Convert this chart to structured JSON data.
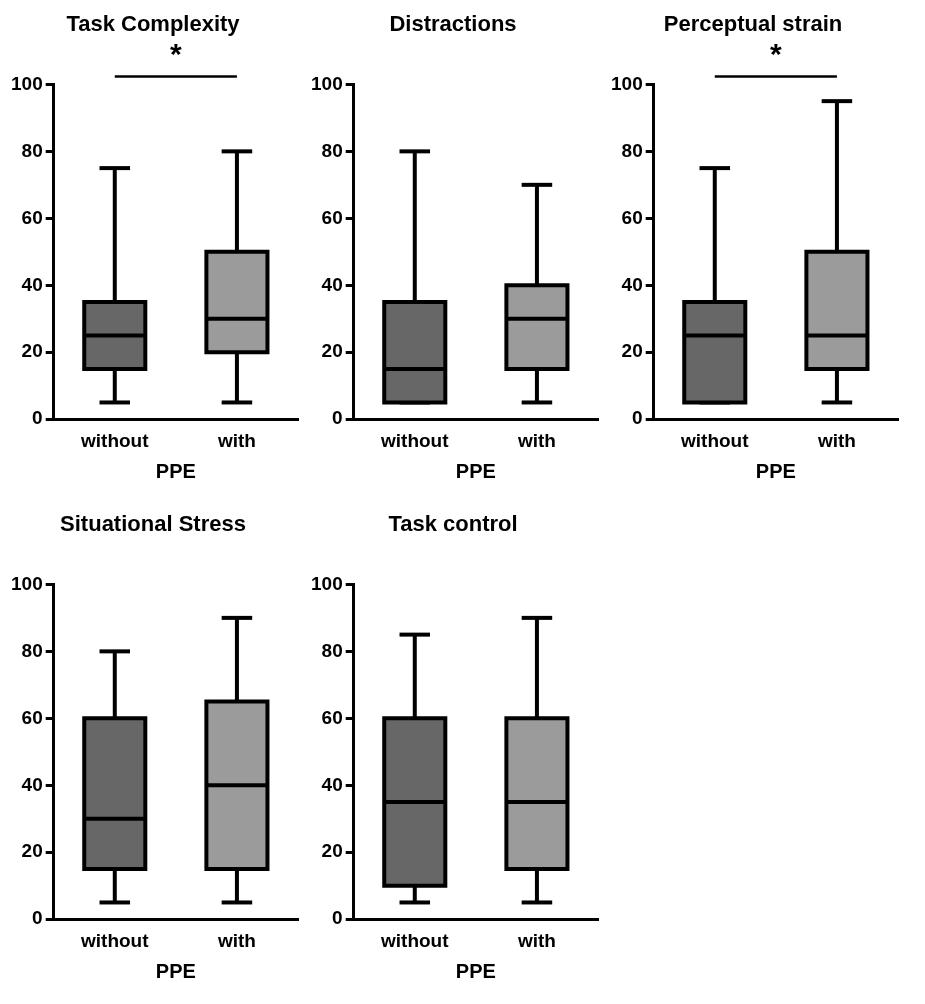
{
  "chart_data": [
    {
      "type": "box",
      "title": "Task Complexity",
      "xlabel": "PPE",
      "categories": [
        "without",
        "with"
      ],
      "colors": [
        "#676767",
        "#9b9b9b"
      ],
      "ylim": [
        0,
        100
      ],
      "yticks": [
        0,
        20,
        40,
        60,
        80,
        100
      ],
      "annotations": [
        "*"
      ],
      "boxes": [
        {
          "low": 5,
          "q1": 15,
          "median": 25,
          "q3": 35,
          "high": 75
        },
        {
          "low": 5,
          "q1": 20,
          "median": 30,
          "q3": 50,
          "high": 80
        }
      ]
    },
    {
      "type": "box",
      "title": "Distractions",
      "xlabel": "PPE",
      "categories": [
        "without",
        "with"
      ],
      "colors": [
        "#676767",
        "#9b9b9b"
      ],
      "ylim": [
        0,
        100
      ],
      "yticks": [
        0,
        20,
        40,
        60,
        80,
        100
      ],
      "boxes": [
        {
          "low": 5,
          "q1": 5,
          "median": 15,
          "q3": 35,
          "high": 80
        },
        {
          "low": 5,
          "q1": 15,
          "median": 30,
          "q3": 40,
          "high": 70
        }
      ]
    },
    {
      "type": "box",
      "title": "Perceptual strain",
      "xlabel": "PPE",
      "categories": [
        "without",
        "with"
      ],
      "colors": [
        "#676767",
        "#9b9b9b"
      ],
      "ylim": [
        0,
        100
      ],
      "yticks": [
        0,
        20,
        40,
        60,
        80,
        100
      ],
      "annotations": [
        "*"
      ],
      "boxes": [
        {
          "low": 5,
          "q1": 5,
          "median": 25,
          "q3": 35,
          "high": 75
        },
        {
          "low": 5,
          "q1": 15,
          "median": 25,
          "q3": 50,
          "high": 95
        }
      ]
    },
    {
      "type": "box",
      "title": "Situational Stress",
      "xlabel": "PPE",
      "categories": [
        "without",
        "with"
      ],
      "colors": [
        "#676767",
        "#9b9b9b"
      ],
      "ylim": [
        0,
        100
      ],
      "yticks": [
        0,
        20,
        40,
        60,
        80,
        100
      ],
      "boxes": [
        {
          "low": 5,
          "q1": 15,
          "median": 30,
          "q3": 60,
          "high": 80
        },
        {
          "low": 5,
          "q1": 15,
          "median": 40,
          "q3": 65,
          "high": 90
        }
      ]
    },
    {
      "type": "box",
      "title": "Task control",
      "xlabel": "PPE",
      "categories": [
        "without",
        "with"
      ],
      "colors": [
        "#676767",
        "#9b9b9b"
      ],
      "ylim": [
        0,
        100
      ],
      "yticks": [
        0,
        20,
        40,
        60,
        80,
        100
      ],
      "boxes": [
        {
          "low": 5,
          "q1": 10,
          "median": 35,
          "q3": 60,
          "high": 85
        },
        {
          "low": 5,
          "q1": 15,
          "median": 35,
          "q3": 60,
          "high": 90
        }
      ]
    }
  ]
}
